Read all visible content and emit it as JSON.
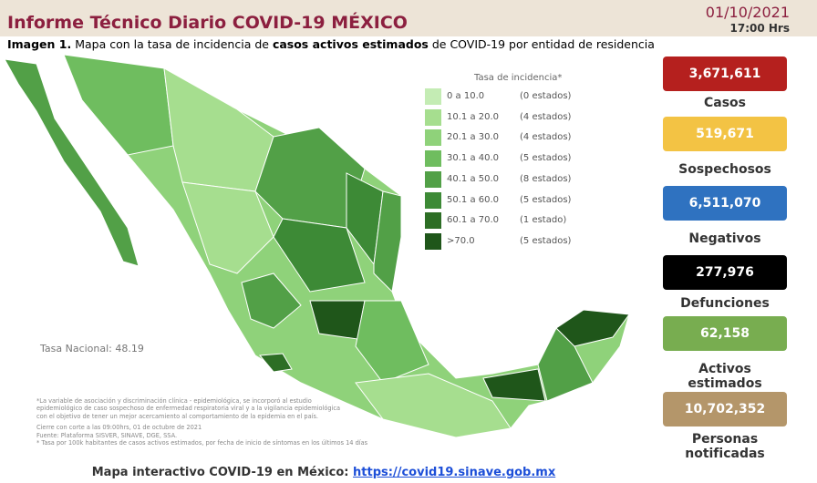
{
  "header": {
    "title": "Informe Técnico Diario COVID-19 MÉXICO",
    "date": "01/10/2021",
    "time": "17:00 Hrs"
  },
  "caption": {
    "lead": "Imagen 1.",
    "text1": "Mapa con la tasa de incidencia de",
    "bold": "casos activos estimados",
    "text2": "de COVID-19 por entidad de residencia"
  },
  "legend": {
    "title": "Tasa de incidencia*",
    "items": [
      {
        "range": "0  a  10.0",
        "count": "(0 estados)",
        "color": "#c4ecb4"
      },
      {
        "range": "10.1  a  20.0",
        "count": "(4 estados)",
        "color": "#a6de8f"
      },
      {
        "range": "20.1  a  30.0",
        "count": "(4 estados)",
        "color": "#8fd27a"
      },
      {
        "range": "30.1  a  40.0",
        "count": "(5 estados)",
        "color": "#6fbd5f"
      },
      {
        "range": "40.1  a  50.0",
        "count": "(8 estados)",
        "color": "#52a047"
      },
      {
        "range": "50.1  a  60.0",
        "count": "(5 estados)",
        "color": "#3d8a36"
      },
      {
        "range": "60.1  a  70.0",
        "count": "(1 estado)",
        "color": "#2d6e25"
      },
      {
        "range": ">70.0",
        "count": "(5 estados)",
        "color": "#1f561a"
      }
    ]
  },
  "national_rate": "Tasa Nacional: 48.19",
  "footnotes": [
    "*La variable de asociación y discriminación clínica - epidemiológica, se incorporó al estudio",
    "epidemiológico de caso sospechoso de enfermedad respiratoria viral y a la vigilancia epidemiológica",
    "con el objetivo de tener un mejor acercamiento al comportamiento de la epidemia en el país.",
    "Cierre con corte a las 09:00hrs, 01 de octubre de 2021",
    "Fuente: Plataforma SISVER, SINAVE, DGE, SSA.",
    "* Tasa por 100k habitantes de casos activos estimados, por fecha de inicio de síntomas en los últimos 14 días"
  ],
  "stats": [
    {
      "value": "3,671,611",
      "label": "Casos",
      "color": "#b5201e"
    },
    {
      "value": "519,671",
      "label": "Sospechosos",
      "color": "#f3c344"
    },
    {
      "value": "6,511,070",
      "label": "Negativos",
      "color": "#2f72c0"
    },
    {
      "value": "277,976",
      "label": "Defunciones",
      "color": "#000000"
    },
    {
      "value": "62,158",
      "label": "Activos estimados",
      "color": "#78ad50"
    },
    {
      "value": "10,702,352",
      "label": "Personas notificadas",
      "color": "#b4966a"
    }
  ],
  "footer": {
    "text": "Mapa interactivo COVID-19 en México:",
    "link": "https://covid19.sinave.gob.mx"
  }
}
